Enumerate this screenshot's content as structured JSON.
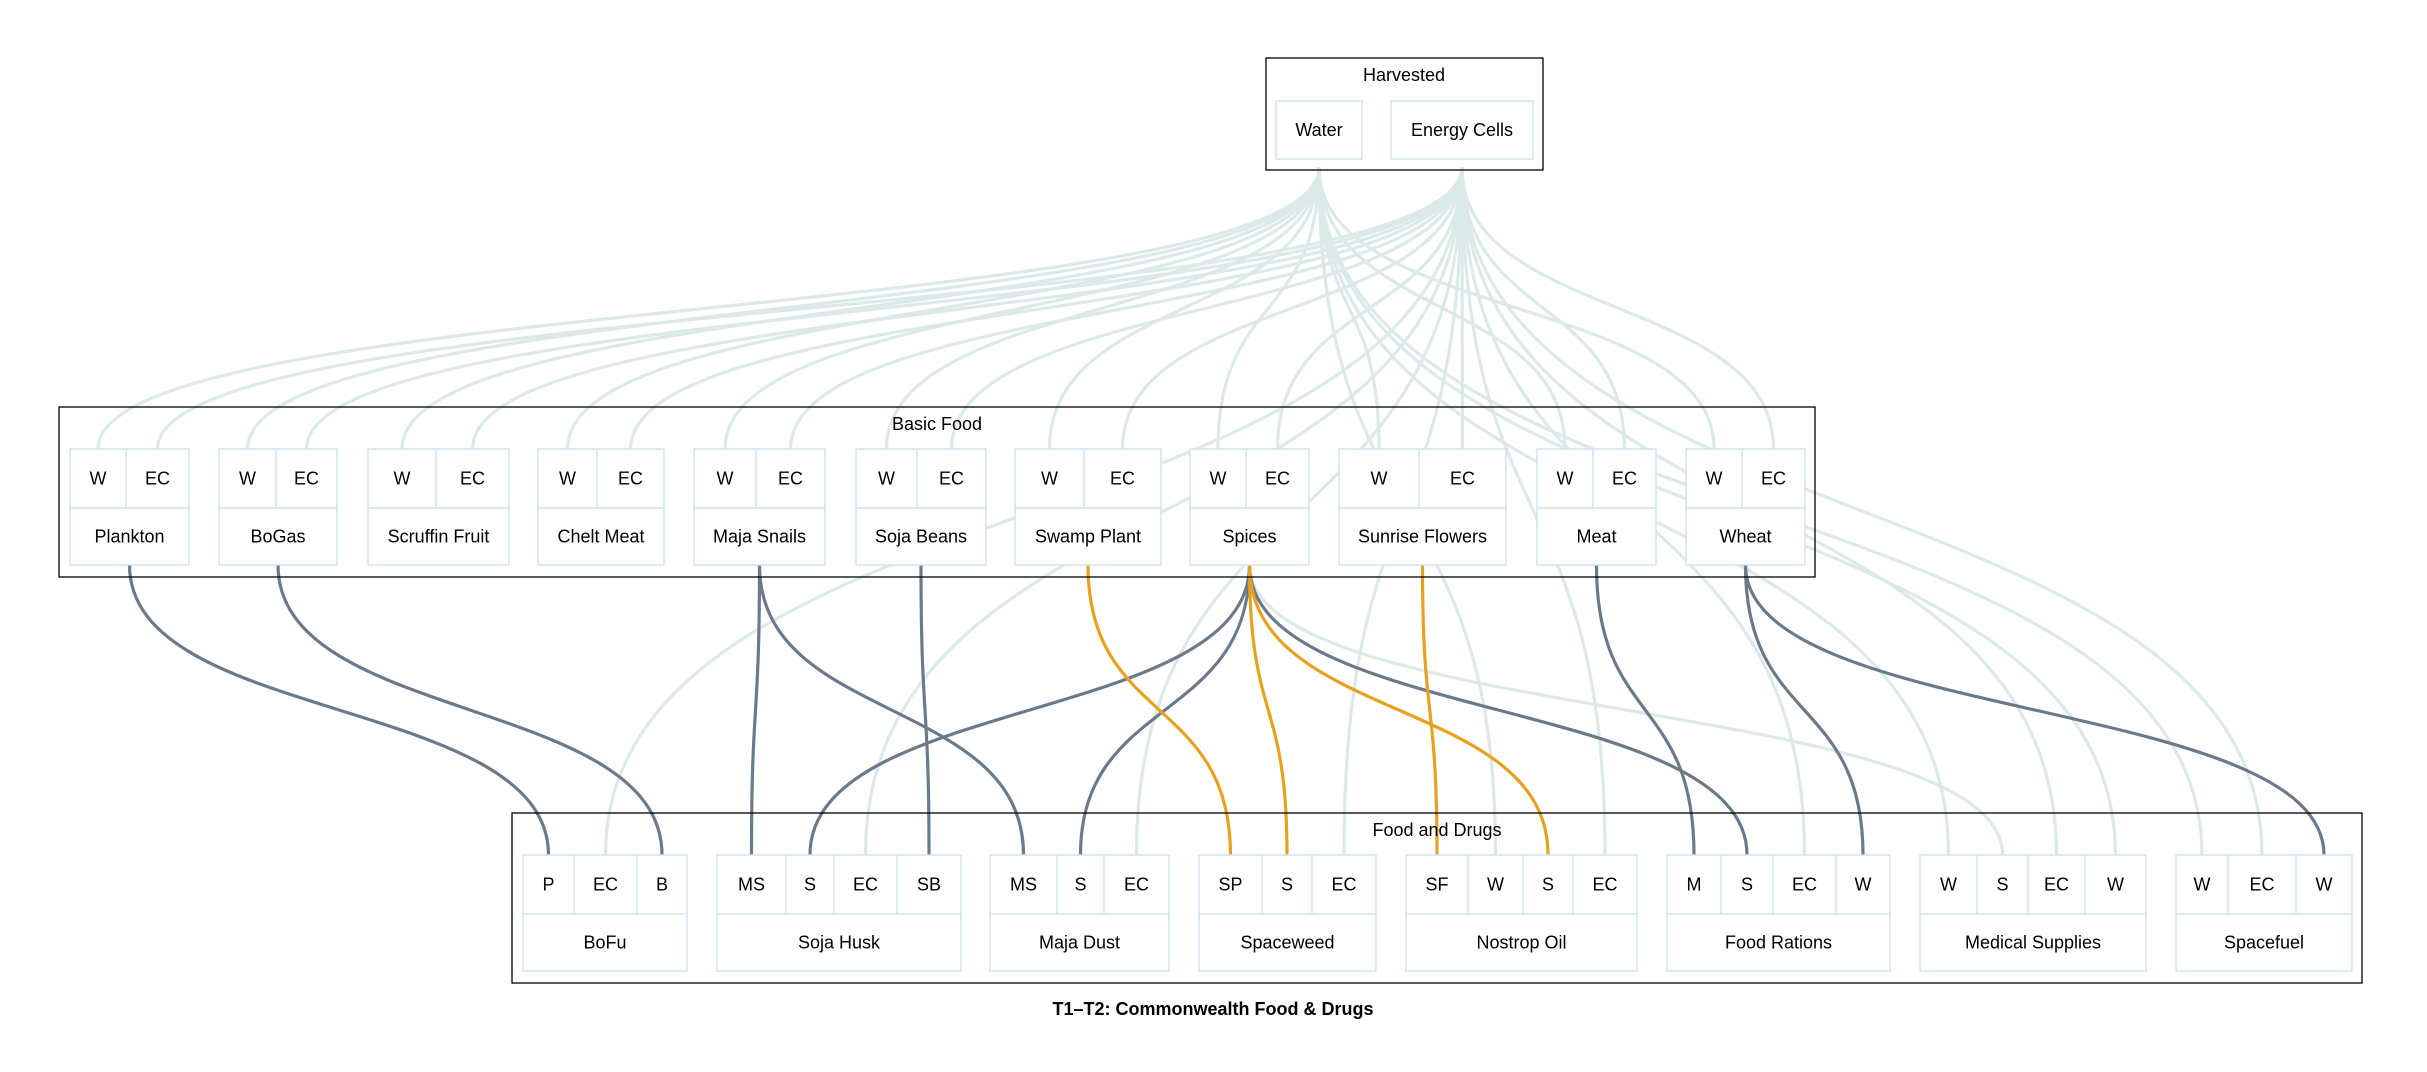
{
  "title": "T1–T2: Commonwealth Food & Drugs",
  "colors": {
    "harvested_edge": "#dbeae9",
    "basic_edge": "#6b7a8a",
    "highlight_edge": "#e6a21f",
    "node_border": "#cfe3f2",
    "cluster_border": "#000000"
  },
  "clusters": [
    {
      "label": "Harvested",
      "nodes": [
        {
          "id": "water",
          "label": "Water",
          "ports": []
        },
        {
          "id": "energy_cells",
          "label": "Energy Cells",
          "ports": []
        }
      ]
    },
    {
      "label": "Basic Food",
      "nodes": [
        {
          "id": "plankton",
          "label": "Plankton",
          "ports": [
            "W",
            "EC"
          ]
        },
        {
          "id": "bogas",
          "label": "BoGas",
          "ports": [
            "W",
            "EC"
          ]
        },
        {
          "id": "scruffin_fruit",
          "label": "Scruffin Fruit",
          "ports": [
            "W",
            "EC"
          ]
        },
        {
          "id": "chelt_meat",
          "label": "Chelt Meat",
          "ports": [
            "W",
            "EC"
          ]
        },
        {
          "id": "maja_snails",
          "label": "Maja Snails",
          "ports": [
            "W",
            "EC"
          ]
        },
        {
          "id": "soja_beans",
          "label": "Soja Beans",
          "ports": [
            "W",
            "EC"
          ]
        },
        {
          "id": "swamp_plant",
          "label": "Swamp Plant",
          "ports": [
            "W",
            "EC"
          ]
        },
        {
          "id": "spices",
          "label": "Spices",
          "ports": [
            "W",
            "EC"
          ]
        },
        {
          "id": "sunrise_flowers",
          "label": "Sunrise Flowers",
          "ports": [
            "W",
            "EC"
          ]
        },
        {
          "id": "meat",
          "label": "Meat",
          "ports": [
            "W",
            "EC"
          ]
        },
        {
          "id": "wheat",
          "label": "Wheat",
          "ports": [
            "W",
            "EC"
          ]
        }
      ]
    },
    {
      "label": "Food and Drugs",
      "nodes": [
        {
          "id": "bofu",
          "label": "BoFu",
          "ports": [
            "P",
            "EC",
            "B"
          ]
        },
        {
          "id": "soja_husk",
          "label": "Soja Husk",
          "ports": [
            "MS",
            "S",
            "EC",
            "SB"
          ]
        },
        {
          "id": "maja_dust",
          "label": "Maja Dust",
          "ports": [
            "MS",
            "S",
            "EC"
          ]
        },
        {
          "id": "spaceweed",
          "label": "Spaceweed",
          "ports": [
            "SP",
            "S",
            "EC"
          ]
        },
        {
          "id": "nostrop_oil",
          "label": "Nostrop Oil",
          "ports": [
            "SF",
            "W",
            "S",
            "EC"
          ]
        },
        {
          "id": "food_rations",
          "label": "Food Rations",
          "ports": [
            "M",
            "S",
            "EC",
            "W"
          ]
        },
        {
          "id": "medical_supplies",
          "label": "Medical Supplies",
          "ports": [
            "W",
            "S",
            "EC",
            "W"
          ]
        },
        {
          "id": "spacefuel",
          "label": "Spacefuel",
          "ports": [
            "W",
            "EC",
            "W"
          ]
        }
      ]
    }
  ],
  "edges": [
    {
      "from": "water",
      "to": "plankton",
      "port": 0,
      "style": "harvested"
    },
    {
      "from": "energy_cells",
      "to": "plankton",
      "port": 1,
      "style": "harvested"
    },
    {
      "from": "water",
      "to": "bogas",
      "port": 0,
      "style": "harvested"
    },
    {
      "from": "energy_cells",
      "to": "bogas",
      "port": 1,
      "style": "harvested"
    },
    {
      "from": "water",
      "to": "scruffin_fruit",
      "port": 0,
      "style": "harvested"
    },
    {
      "from": "energy_cells",
      "to": "scruffin_fruit",
      "port": 1,
      "style": "harvested"
    },
    {
      "from": "water",
      "to": "chelt_meat",
      "port": 0,
      "style": "harvested"
    },
    {
      "from": "energy_cells",
      "to": "chelt_meat",
      "port": 1,
      "style": "harvested"
    },
    {
      "from": "water",
      "to": "maja_snails",
      "port": 0,
      "style": "harvested"
    },
    {
      "from": "energy_cells",
      "to": "maja_snails",
      "port": 1,
      "style": "harvested"
    },
    {
      "from": "water",
      "to": "soja_beans",
      "port": 0,
      "style": "harvested"
    },
    {
      "from": "energy_cells",
      "to": "soja_beans",
      "port": 1,
      "style": "harvested"
    },
    {
      "from": "water",
      "to": "swamp_plant",
      "port": 0,
      "style": "harvested"
    },
    {
      "from": "energy_cells",
      "to": "swamp_plant",
      "port": 1,
      "style": "harvested"
    },
    {
      "from": "water",
      "to": "spices",
      "port": 0,
      "style": "harvested"
    },
    {
      "from": "energy_cells",
      "to": "spices",
      "port": 1,
      "style": "harvested"
    },
    {
      "from": "water",
      "to": "sunrise_flowers",
      "port": 0,
      "style": "harvested"
    },
    {
      "from": "energy_cells",
      "to": "sunrise_flowers",
      "port": 1,
      "style": "harvested"
    },
    {
      "from": "water",
      "to": "meat",
      "port": 0,
      "style": "harvested"
    },
    {
      "from": "energy_cells",
      "to": "meat",
      "port": 1,
      "style": "harvested"
    },
    {
      "from": "water",
      "to": "wheat",
      "port": 0,
      "style": "harvested"
    },
    {
      "from": "energy_cells",
      "to": "wheat",
      "port": 1,
      "style": "harvested"
    },
    {
      "from": "energy_cells",
      "to": "bofu",
      "port": 1,
      "style": "harvested"
    },
    {
      "from": "energy_cells",
      "to": "soja_husk",
      "port": 2,
      "style": "harvested"
    },
    {
      "from": "energy_cells",
      "to": "maja_dust",
      "port": 2,
      "style": "harvested"
    },
    {
      "from": "energy_cells",
      "to": "spaceweed",
      "port": 2,
      "style": "harvested"
    },
    {
      "from": "water",
      "to": "nostrop_oil",
      "port": 1,
      "style": "harvested"
    },
    {
      "from": "energy_cells",
      "to": "nostrop_oil",
      "port": 3,
      "style": "harvested"
    },
    {
      "from": "energy_cells",
      "to": "food_rations",
      "port": 2,
      "style": "harvested"
    },
    {
      "from": "water",
      "to": "medical_supplies",
      "port": 0,
      "style": "harvested"
    },
    {
      "from": "energy_cells",
      "to": "medical_supplies",
      "port": 2,
      "style": "harvested"
    },
    {
      "from": "water",
      "to": "medical_supplies",
      "port": 3,
      "style": "harvested"
    },
    {
      "from": "water",
      "to": "spacefuel",
      "port": 0,
      "style": "harvested"
    },
    {
      "from": "energy_cells",
      "to": "spacefuel",
      "port": 1,
      "style": "harvested"
    },
    {
      "from": "plankton",
      "to": "bofu",
      "port": 0,
      "style": "basic"
    },
    {
      "from": "bogas",
      "to": "bofu",
      "port": 2,
      "style": "basic"
    },
    {
      "from": "maja_snails",
      "to": "soja_husk",
      "port": 0,
      "style": "basic"
    },
    {
      "from": "spices",
      "to": "soja_husk",
      "port": 1,
      "style": "basic"
    },
    {
      "from": "soja_beans",
      "to": "soja_husk",
      "port": 3,
      "style": "basic"
    },
    {
      "from": "maja_snails",
      "to": "maja_dust",
      "port": 0,
      "style": "basic"
    },
    {
      "from": "spices",
      "to": "maja_dust",
      "port": 1,
      "style": "basic"
    },
    {
      "from": "swamp_plant",
      "to": "spaceweed",
      "port": 0,
      "style": "highlight"
    },
    {
      "from": "spices",
      "to": "spaceweed",
      "port": 1,
      "style": "highlight"
    },
    {
      "from": "sunrise_flowers",
      "to": "nostrop_oil",
      "port": 0,
      "style": "highlight"
    },
    {
      "from": "spices",
      "to": "nostrop_oil",
      "port": 2,
      "style": "highlight"
    },
    {
      "from": "meat",
      "to": "food_rations",
      "port": 0,
      "style": "basic"
    },
    {
      "from": "spices",
      "to": "food_rations",
      "port": 1,
      "style": "basic"
    },
    {
      "from": "wheat",
      "to": "food_rations",
      "port": 3,
      "style": "basic"
    },
    {
      "from": "spices",
      "to": "medical_supplies",
      "port": 1,
      "style": "harvested"
    },
    {
      "from": "wheat",
      "to": "spacefuel",
      "port": 2,
      "style": "basic"
    }
  ]
}
